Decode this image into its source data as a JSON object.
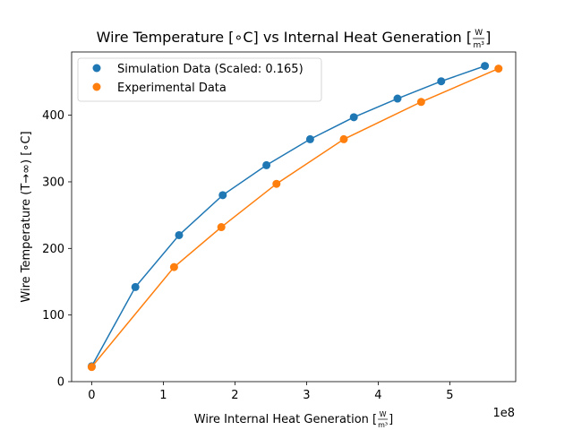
{
  "chart_data": {
    "type": "line",
    "title": "Wire Temperature [∘C] vs Internal Heat Generation [W/m³]",
    "title_main": "Wire Temperature [∘C] vs Internal Heat Generation [",
    "title_unit_num": "W",
    "title_unit_den": "m³",
    "title_close": "]",
    "xlabel": "Wire Internal Heat Generation [W/m³]",
    "xlabel_main": "Wire Internal Heat Generation [",
    "xlabel_unit_num": "W",
    "xlabel_unit_den": "m³",
    "xlabel_close": "]",
    "ylabel": "Wire Temperature (T→∞) [∘C]",
    "x_offset_label": "1e8",
    "xlim": [
      -28000000.0,
      592000000.0
    ],
    "ylim": [
      0,
      495
    ],
    "xticks": [
      0,
      100000000.0,
      200000000.0,
      300000000.0,
      400000000.0,
      500000000.0
    ],
    "xtick_labels": [
      "0",
      "1",
      "2",
      "3",
      "4",
      "5"
    ],
    "yticks": [
      0,
      100,
      200,
      300,
      400
    ],
    "ytick_labels": [
      "0",
      "100",
      "200",
      "300",
      "400"
    ],
    "grid": false,
    "legend_position": "upper-left",
    "series": [
      {
        "name": "Simulation Data (Scaled: 0.165)",
        "color": "#1f77b4",
        "x": [
          0,
          61000000.0,
          122000000.0,
          183000000.0,
          244000000.0,
          305000000.0,
          366000000.0,
          427000000.0,
          488000000.0,
          549000000.0
        ],
        "y": [
          23,
          142,
          220,
          280,
          325,
          364,
          397,
          425,
          451,
          474
        ]
      },
      {
        "name": "Experimental Data",
        "color": "#ff7f0e",
        "x": [
          0,
          115000000.0,
          181000000.0,
          258000000.0,
          352000000.0,
          460000000.0,
          568000000.0
        ],
        "y": [
          22,
          172,
          232,
          297,
          364,
          420,
          470
        ]
      }
    ]
  }
}
